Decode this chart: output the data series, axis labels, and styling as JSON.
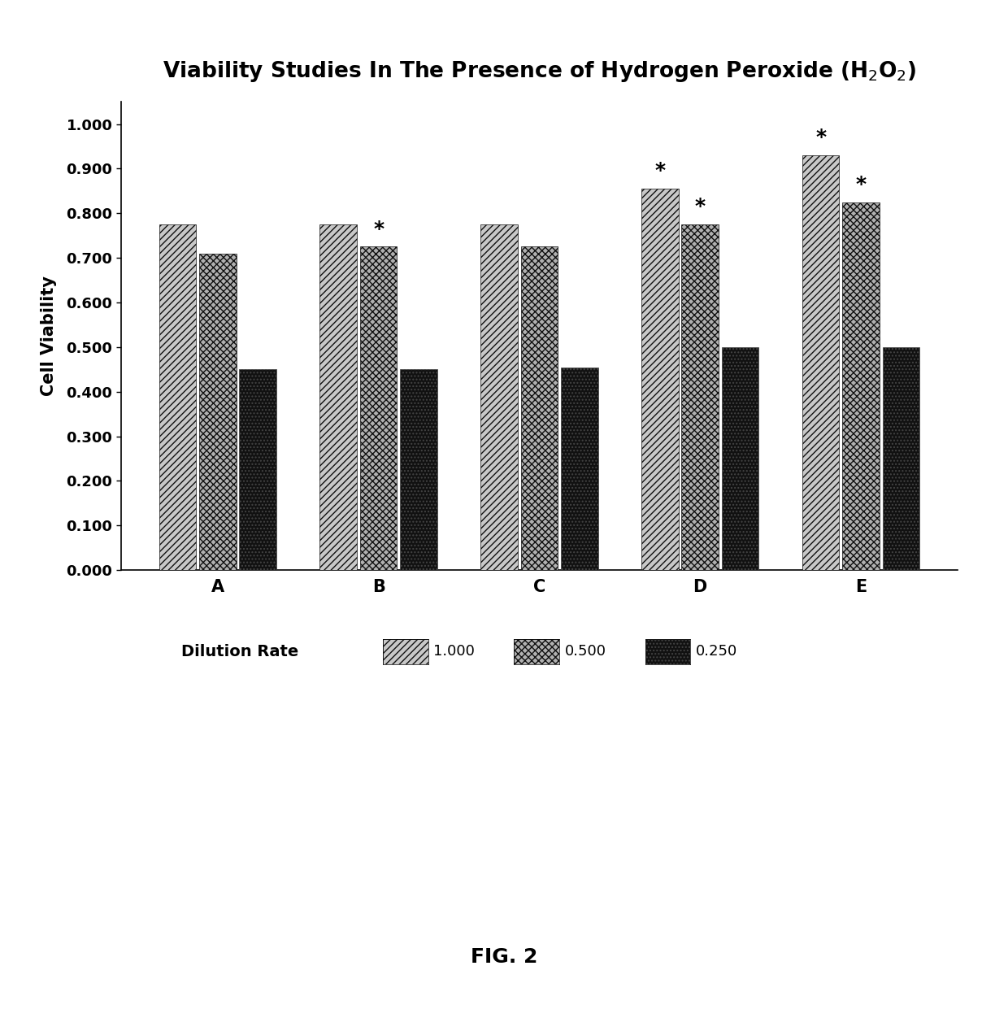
{
  "title": "Viability Studies In The Presence of Hydrogen Peroxide (H$_2$O$_2$)",
  "ylabel": "Cell Viability",
  "xlabel_categories": [
    "A",
    "B",
    "C",
    "D",
    "E"
  ],
  "series": {
    "1.000": [
      0.775,
      0.775,
      0.775,
      0.855,
      0.93
    ],
    "0.500": [
      0.71,
      0.725,
      0.725,
      0.775,
      0.825
    ],
    "0.250": [
      0.45,
      0.45,
      0.455,
      0.5,
      0.5
    ]
  },
  "ylim": [
    0.0,
    1.05
  ],
  "yticks": [
    0.0,
    0.1,
    0.2,
    0.3,
    0.4,
    0.5,
    0.6,
    0.7,
    0.8,
    0.9,
    1.0
  ],
  "legend_label": "Dilution Rate",
  "legend_entries": [
    "1.000",
    "0.500",
    "0.250"
  ],
  "asterisks": {
    "B": [
      false,
      true,
      false
    ],
    "D": [
      true,
      true,
      false
    ],
    "E": [
      true,
      true,
      false
    ]
  },
  "bar_width": 0.25,
  "figure_caption": "FIG. 2",
  "background_color": "#ffffff"
}
